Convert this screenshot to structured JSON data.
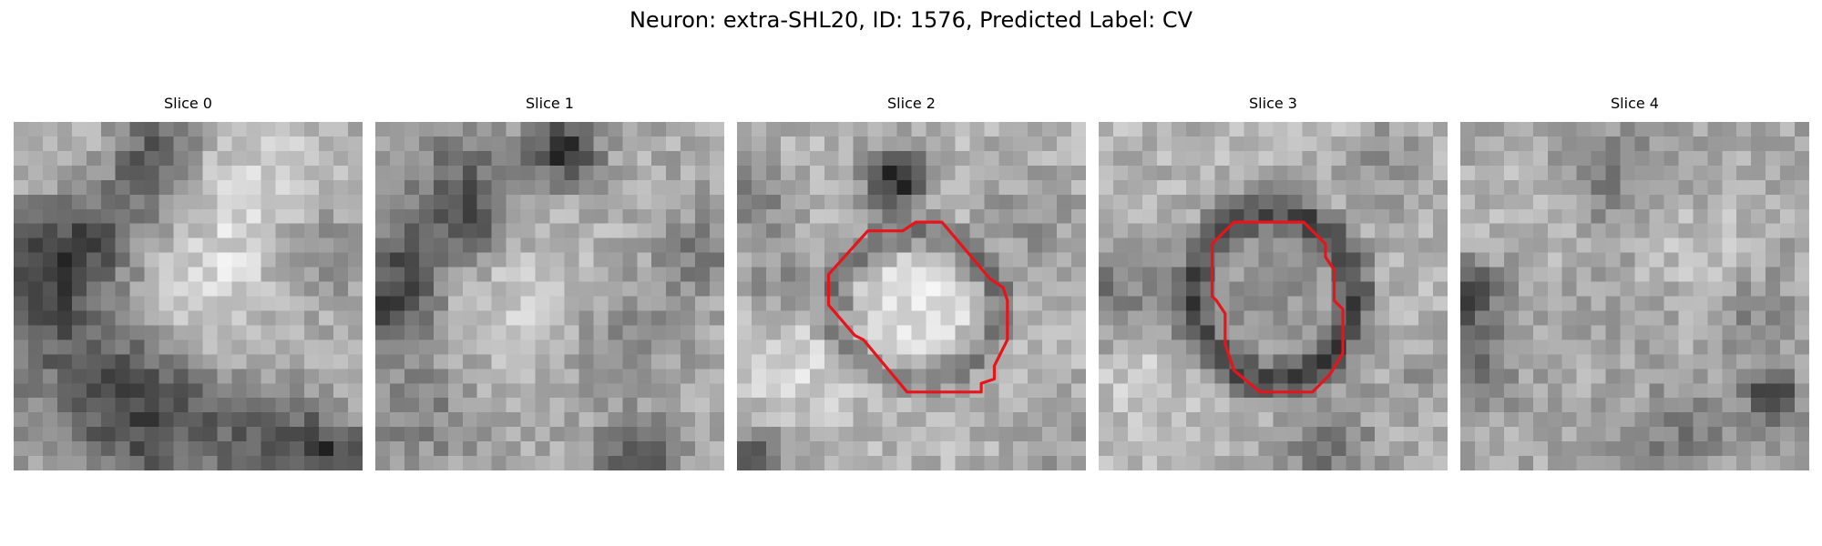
{
  "figure": {
    "title": "Neuron: extra-SHL20, ID: 1576, Predicted Label: CV"
  },
  "panels": [
    {
      "title": "Slice 0",
      "has_contour": false
    },
    {
      "title": "Slice 1",
      "has_contour": false
    },
    {
      "title": "Slice 2",
      "has_contour": true
    },
    {
      "title": "Slice 3",
      "has_contour": true
    },
    {
      "title": "Slice 4",
      "has_contour": false
    }
  ],
  "colors": {
    "contour": "#e8141c",
    "background": "#ffffff"
  }
}
